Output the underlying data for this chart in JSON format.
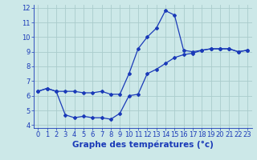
{
  "xlabel": "Graphe des températures (°c)",
  "line1_x": [
    0,
    1,
    2,
    3,
    4,
    5,
    6,
    7,
    8,
    9,
    10,
    11,
    12,
    13,
    14,
    15,
    16,
    17,
    18,
    19,
    20,
    21,
    22,
    23
  ],
  "line1_y": [
    6.3,
    6.5,
    6.3,
    6.3,
    6.3,
    6.2,
    6.2,
    6.3,
    6.1,
    6.1,
    7.5,
    9.2,
    10.0,
    10.6,
    11.8,
    11.5,
    9.1,
    9.0,
    9.1,
    9.2,
    9.2,
    9.2,
    9.0,
    9.1
  ],
  "line2_x": [
    0,
    1,
    2,
    3,
    4,
    5,
    6,
    7,
    8,
    9,
    10,
    11,
    12,
    13,
    14,
    15,
    16,
    17,
    18,
    19,
    20,
    21,
    22,
    23
  ],
  "line2_y": [
    6.3,
    6.5,
    6.3,
    4.7,
    4.5,
    4.6,
    4.5,
    4.5,
    4.4,
    4.8,
    6.0,
    6.1,
    7.5,
    7.8,
    8.2,
    8.6,
    8.8,
    8.9,
    9.1,
    9.2,
    9.2,
    9.2,
    9.0,
    9.1
  ],
  "line_color": "#1a3ab8",
  "bg_color": "#cce8e8",
  "grid_color": "#aacccc",
  "xlim": [
    -0.5,
    23.5
  ],
  "ylim": [
    3.8,
    12.2
  ],
  "yticks": [
    4,
    5,
    6,
    7,
    8,
    9,
    10,
    11,
    12
  ],
  "xticks": [
    0,
    1,
    2,
    3,
    4,
    5,
    6,
    7,
    8,
    9,
    10,
    11,
    12,
    13,
    14,
    15,
    16,
    17,
    18,
    19,
    20,
    21,
    22,
    23
  ],
  "marker": "D",
  "markersize": 2.0,
  "linewidth": 0.9,
  "xlabel_fontsize": 7.5,
  "tick_fontsize": 6.0
}
